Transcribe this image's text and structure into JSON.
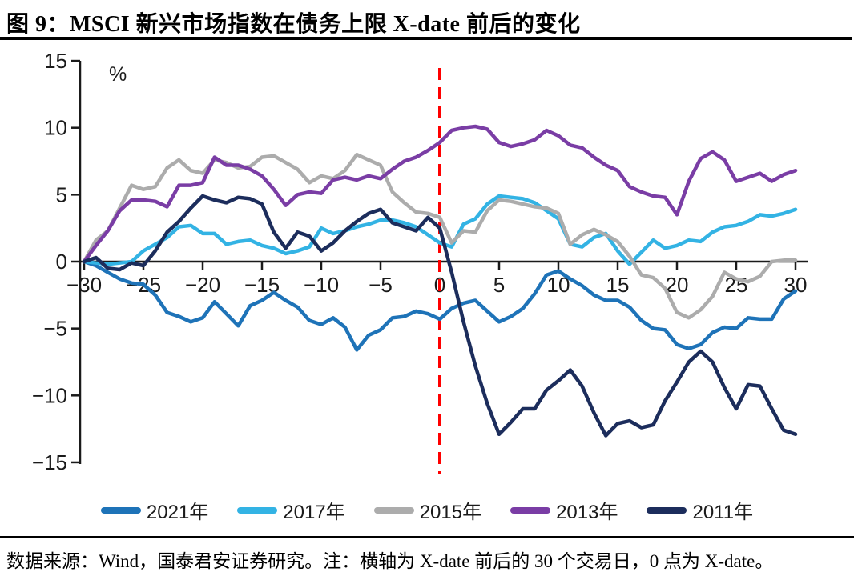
{
  "header": {
    "title": "图 9：MSCI 新兴市场指数在债务上限 X-date 前后的变化"
  },
  "footer": {
    "note": "数据来源：Wind，国泰君安证券研究。注：横轴为 X-date 前后的 30 个交易日，0 点为 X-date。"
  },
  "chart_data": {
    "type": "line",
    "unit_label": "%",
    "legend_position": "bottom",
    "grid": false,
    "x_axis": {
      "min": -30,
      "max": 30,
      "tick_step": 5,
      "ticks": [
        -30,
        -25,
        -20,
        -15,
        -10,
        -5,
        0,
        5,
        10,
        15,
        20,
        25,
        30
      ]
    },
    "y_axis": {
      "min": -15,
      "max": 15,
      "tick_step": 5,
      "ticks": [
        15,
        10,
        5,
        0,
        -5,
        -10,
        -15
      ]
    },
    "x_date_line": {
      "x": 0,
      "color": "#FF0000",
      "style": "dashed"
    },
    "x": [
      -30,
      -29,
      -28,
      -27,
      -26,
      -25,
      -24,
      -23,
      -22,
      -21,
      -20,
      -19,
      -18,
      -17,
      -16,
      -15,
      -14,
      -13,
      -12,
      -11,
      -10,
      -9,
      -8,
      -7,
      -6,
      -5,
      -4,
      -3,
      -2,
      -1,
      0,
      1,
      2,
      3,
      4,
      5,
      6,
      7,
      8,
      9,
      10,
      11,
      12,
      13,
      14,
      15,
      16,
      17,
      18,
      19,
      20,
      21,
      22,
      23,
      24,
      25,
      26,
      27,
      28,
      29,
      30
    ],
    "series": [
      {
        "name": "2021年",
        "color": "#1E73B8",
        "values": [
          0,
          -0.3,
          -0.8,
          -1.3,
          -1.6,
          -1.7,
          -2.5,
          -3.8,
          -4.1,
          -4.5,
          -4.2,
          -3.0,
          -3.9,
          -4.8,
          -3.3,
          -2.9,
          -2.3,
          -2.9,
          -3.4,
          -4.4,
          -4.7,
          -4.2,
          -4.9,
          -6.6,
          -5.5,
          -5.1,
          -4.2,
          -4.1,
          -3.7,
          -3.9,
          -4.3,
          -3.5,
          -3.1,
          -2.9,
          -3.7,
          -4.5,
          -4.1,
          -3.5,
          -2.4,
          -1.0,
          -0.7,
          -1.3,
          -1.8,
          -2.5,
          -2.9,
          -2.9,
          -3.4,
          -4.4,
          -5.0,
          -5.1,
          -6.2,
          -6.5,
          -6.2,
          -5.3,
          -4.9,
          -5.0,
          -4.2,
          -4.3,
          -4.3,
          -2.8,
          -2.2
        ]
      },
      {
        "name": "2017年",
        "color": "#33B3E4",
        "values": [
          0,
          -0.1,
          -0.2,
          -0.1,
          0.0,
          0.8,
          1.3,
          1.8,
          2.6,
          2.7,
          2.1,
          2.1,
          1.3,
          1.5,
          1.6,
          1.2,
          1.0,
          0.6,
          0.8,
          1.1,
          2.5,
          2.1,
          2.3,
          2.6,
          2.8,
          3.1,
          3.1,
          2.9,
          2.6,
          2.0,
          1.4,
          1.1,
          2.8,
          3.2,
          4.3,
          4.9,
          4.8,
          4.7,
          4.4,
          3.8,
          3.2,
          1.3,
          1.1,
          1.8,
          2.1,
          0.8,
          -0.2,
          0.7,
          1.6,
          1.0,
          1.2,
          1.6,
          1.5,
          2.2,
          2.6,
          2.7,
          3.0,
          3.5,
          3.4,
          3.6,
          3.9
        ]
      },
      {
        "name": "2015年",
        "color": "#ACACAC",
        "values": [
          0,
          1.6,
          2.3,
          4.0,
          5.7,
          5.4,
          5.6,
          7.0,
          7.6,
          6.8,
          6.6,
          7.6,
          7.4,
          7.0,
          7.1,
          7.8,
          7.9,
          7.4,
          6.9,
          5.9,
          6.4,
          6.2,
          6.8,
          8.0,
          7.6,
          7.2,
          5.2,
          4.4,
          3.7,
          3.6,
          3.3,
          1.4,
          2.3,
          2.2,
          3.8,
          4.6,
          4.5,
          4.3,
          4.1,
          4.0,
          3.6,
          1.3,
          2.0,
          2.4,
          2.0,
          1.5,
          0.4,
          -1.0,
          -1.2,
          -2.0,
          -3.8,
          -4.2,
          -3.6,
          -2.6,
          -0.8,
          -1.3,
          -1.5,
          -1.1,
          0.0,
          0.1,
          0.1
        ]
      },
      {
        "name": "2013年",
        "color": "#7A3DA5",
        "values": [
          0,
          1.2,
          2.3,
          3.8,
          4.6,
          4.6,
          4.5,
          4.1,
          5.7,
          5.7,
          5.9,
          7.8,
          7.2,
          7.2,
          6.9,
          6.4,
          5.4,
          4.2,
          5.0,
          5.2,
          5.1,
          6.1,
          6.3,
          6.1,
          6.4,
          6.2,
          6.9,
          7.5,
          7.8,
          8.3,
          8.9,
          9.8,
          10.0,
          10.1,
          9.9,
          8.9,
          8.6,
          8.8,
          9.1,
          9.8,
          9.4,
          8.7,
          8.5,
          7.8,
          7.2,
          6.8,
          5.6,
          5.2,
          4.9,
          4.8,
          3.5,
          6.0,
          7.7,
          8.2,
          7.6,
          6.0,
          6.3,
          6.6,
          6.0,
          6.5,
          6.8
        ]
      },
      {
        "name": "2011年",
        "color": "#1C2D5C",
        "values": [
          0,
          0.3,
          -0.5,
          -0.6,
          -0.1,
          -0.3,
          0.8,
          2.2,
          3.0,
          4.0,
          4.9,
          4.6,
          4.4,
          4.8,
          4.7,
          4.3,
          2.2,
          1.0,
          2.2,
          1.9,
          0.8,
          1.4,
          2.3,
          3.0,
          3.6,
          3.9,
          2.9,
          2.6,
          2.3,
          3.3,
          2.5,
          -0.8,
          -4.5,
          -7.8,
          -10.6,
          -12.9,
          -12.0,
          -11.0,
          -11.0,
          -9.6,
          -8.9,
          -8.1,
          -9.3,
          -11.3,
          -13.0,
          -12.1,
          -11.9,
          -12.4,
          -12.2,
          -10.4,
          -9.0,
          -7.5,
          -6.7,
          -7.5,
          -9.4,
          -11.0,
          -9.2,
          -9.3,
          -11.0,
          -12.6,
          -12.9
        ]
      }
    ]
  }
}
